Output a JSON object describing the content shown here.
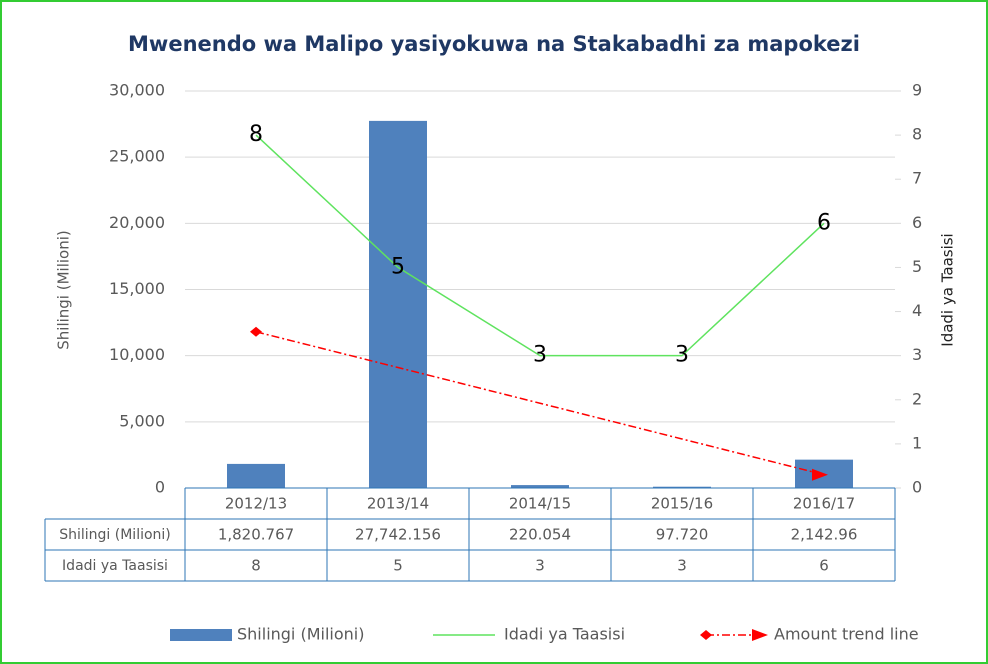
{
  "chart_data": {
    "type": "bar",
    "title": "Mwenendo wa Malipo yasiyokuwa na Stakabadhi za mapokezi",
    "ylabel": "Shilingi (Milioni)",
    "y2label": "Idadi ya Taasisi",
    "categories": [
      "2012/13",
      "2013/14",
      "2014/15",
      "2015/16",
      "2016/17"
    ],
    "series": [
      {
        "name": "Shilingi (Milioni)",
        "type": "bar",
        "color": "#4f81bd",
        "values": [
          1820.767,
          27742.156,
          220.054,
          97.72,
          2142.96
        ],
        "value_labels": [
          "1,820.767",
          "27,742.156",
          "220.054",
          "97.720",
          "2,142.96"
        ]
      },
      {
        "name": "Idadi ya Taasisi",
        "type": "line",
        "axis": "y2",
        "color": "#5fe35f",
        "values": [
          8,
          5,
          3,
          3,
          6
        ]
      },
      {
        "name": "Amount trend line",
        "type": "line",
        "color": "#ff0000",
        "dashed": true,
        "values": [
          11805,
          9105,
          6405,
          3705,
          1005
        ]
      }
    ],
    "ylim": [
      0,
      30000
    ],
    "yticks": [
      0,
      {
        "value": 5000,
        "label": "5,000"
      },
      {
        "value": 10000,
        "label": "10,000"
      },
      {
        "value": 15000,
        "label": "15,000"
      },
      {
        "value": 20000,
        "label": "20,000"
      },
      {
        "value": 25000,
        "label": "25,000"
      },
      {
        "value": 30000,
        "label": "30,000"
      }
    ],
    "y2lim": [
      0,
      9
    ],
    "y2ticks": [
      0,
      1,
      2,
      3,
      4,
      5,
      6,
      7,
      8,
      9
    ],
    "grid": true,
    "legend": "bottom"
  }
}
